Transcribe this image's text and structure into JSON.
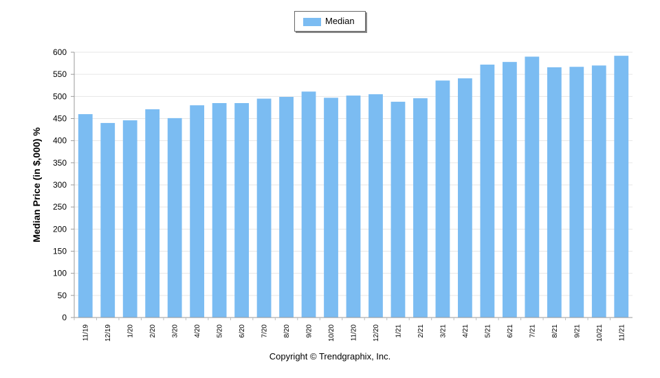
{
  "legend": {
    "label": "Median",
    "swatch_color": "#7bbcf2"
  },
  "footer": {
    "copyright": "Copyright © Trendgraphix, Inc."
  },
  "chart_data": {
    "type": "bar",
    "categories": [
      "11/19",
      "12/19",
      "1/20",
      "2/20",
      "3/20",
      "4/20",
      "5/20",
      "6/20",
      "7/20",
      "8/20",
      "9/20",
      "10/20",
      "11/20",
      "12/20",
      "1/21",
      "2/21",
      "3/21",
      "4/21",
      "5/21",
      "6/21",
      "7/21",
      "8/21",
      "9/21",
      "10/21",
      "11/21"
    ],
    "series": [
      {
        "name": "Median",
        "values": [
          460,
          440,
          446,
          471,
          451,
          480,
          485,
          485,
          495,
          499,
          511,
          497,
          502,
          505,
          488,
          496,
          536,
          541,
          572,
          578,
          590,
          566,
          567,
          570,
          592
        ]
      }
    ],
    "ylabel": "Median Price (in $,000) %",
    "ylim": [
      0,
      600
    ],
    "yticks": [
      0,
      50,
      100,
      150,
      200,
      250,
      300,
      350,
      400,
      450,
      500,
      550,
      600
    ],
    "grid": true,
    "legend_position": "top-center",
    "bar_color": "#7bbcf2"
  }
}
